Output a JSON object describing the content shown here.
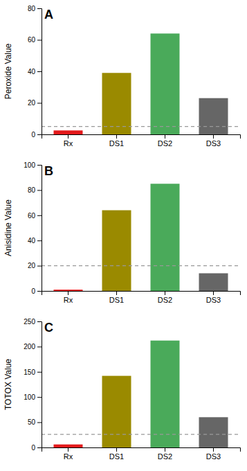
{
  "chart_data": [
    {
      "type": "bar",
      "title": "A",
      "ylabel": "Peroxide Value",
      "categories": [
        "Rx",
        "DS1",
        "DS2",
        "DS3"
      ],
      "values": [
        2.5,
        39,
        64,
        23
      ],
      "colors": [
        "#e31a1c",
        "#9a8a00",
        "#4aaa5a",
        "#666666"
      ],
      "ylim": [
        0,
        80
      ],
      "yticks": [
        0,
        20,
        40,
        60,
        80
      ],
      "hline": 5,
      "grid": false
    },
    {
      "type": "bar",
      "title": "B",
      "ylabel": "Anisidine Value",
      "categories": [
        "Rx",
        "DS1",
        "DS2",
        "DS3"
      ],
      "values": [
        1.0,
        64,
        85,
        14
      ],
      "colors": [
        "#e31a1c",
        "#9a8a00",
        "#4aaa5a",
        "#666666"
      ],
      "ylim": [
        0,
        100
      ],
      "yticks": [
        0,
        20,
        40,
        60,
        80,
        100
      ],
      "hline": 20,
      "grid": false
    },
    {
      "type": "bar",
      "title": "C",
      "ylabel": "TOTOX Value",
      "categories": [
        "Rx",
        "DS1",
        "DS2",
        "DS3"
      ],
      "values": [
        6,
        142,
        212,
        60
      ],
      "colors": [
        "#e31a1c",
        "#9a8a00",
        "#4aaa5a",
        "#666666"
      ],
      "ylim": [
        0,
        250
      ],
      "yticks": [
        0,
        50,
        100,
        150,
        200,
        250
      ],
      "hline": 26,
      "grid": false
    }
  ]
}
